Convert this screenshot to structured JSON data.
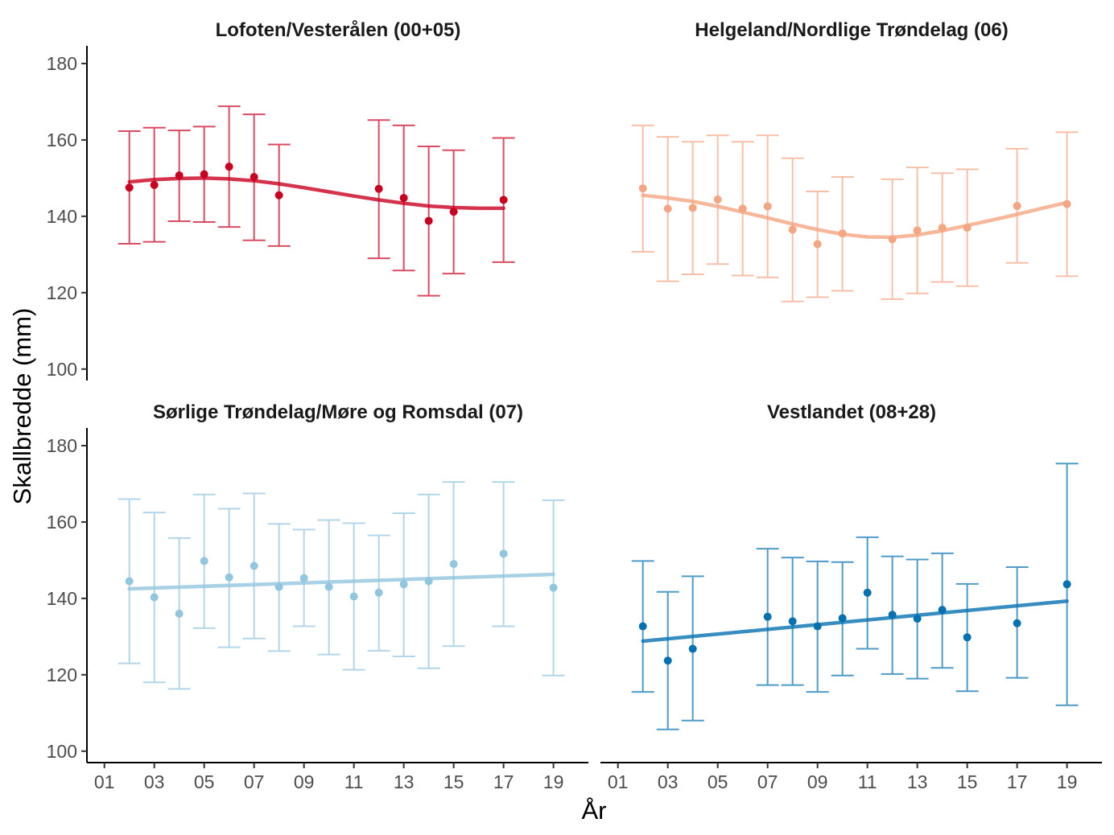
{
  "chart_data": {
    "type": "scatter",
    "xlabel": "År",
    "ylabel": "Skallbredde (mm)",
    "x_ticks": [
      "01",
      "03",
      "05",
      "07",
      "09",
      "11",
      "13",
      "15",
      "17",
      "19"
    ],
    "y_ticks": [
      100,
      120,
      140,
      160,
      180
    ],
    "xlim": [
      0.3,
      20.4
    ],
    "ylim": [
      97,
      184
    ],
    "grid": false,
    "panels": [
      {
        "title": "Lofoten/Vesterålen (00+05)",
        "color": "#ca0020",
        "x": [
          2,
          3,
          4,
          5,
          6,
          7,
          8,
          12,
          13,
          14,
          15,
          17
        ],
        "mean": [
          147.5,
          148.2,
          150.7,
          151.0,
          153.0,
          150.3,
          145.5,
          147.2,
          144.8,
          138.8,
          141.2,
          144.3
        ],
        "lower": [
          132.8,
          133.3,
          138.7,
          138.5,
          137.2,
          133.7,
          132.2,
          129.0,
          125.8,
          119.2,
          125.0,
          128.0
        ],
        "upper": [
          162.3,
          163.2,
          162.5,
          163.5,
          168.8,
          166.7,
          158.8,
          165.2,
          163.8,
          158.3,
          157.3,
          160.5
        ],
        "trend_x": [
          2,
          3,
          4,
          5,
          6,
          7,
          8,
          9,
          10,
          11,
          12,
          13,
          14,
          15,
          16,
          17
        ],
        "trend_y": [
          149.0,
          149.6,
          149.9,
          150.0,
          149.8,
          149.3,
          148.5,
          147.5,
          146.4,
          145.3,
          144.3,
          143.4,
          142.7,
          142.3,
          142.1,
          142.1
        ]
      },
      {
        "title": "Helgeland/Nordlige Trøndelag (06)",
        "color": "#f4a582",
        "x": [
          2,
          3,
          4,
          5,
          6,
          7,
          8,
          9,
          10,
          12,
          13,
          14,
          15,
          17,
          19
        ],
        "mean": [
          147.3,
          142.0,
          142.2,
          144.4,
          142.0,
          142.6,
          136.5,
          132.7,
          135.5,
          134.0,
          136.3,
          137.0,
          137.0,
          142.7,
          143.2
        ],
        "lower": [
          130.7,
          123.0,
          124.8,
          127.5,
          124.5,
          124.0,
          117.7,
          118.8,
          120.5,
          118.3,
          119.8,
          122.8,
          121.7,
          127.8,
          124.3
        ],
        "upper": [
          163.8,
          160.8,
          159.5,
          161.2,
          159.5,
          161.2,
          155.2,
          146.5,
          150.3,
          149.7,
          152.8,
          151.3,
          152.3,
          157.7,
          162.0
        ],
        "trend_x": [
          2,
          3,
          4,
          5,
          6,
          7,
          8,
          9,
          10,
          11,
          12,
          13,
          14,
          15,
          16,
          17,
          18,
          19
        ],
        "trend_y": [
          145.5,
          144.8,
          143.9,
          142.6,
          141.1,
          139.6,
          138.0,
          136.5,
          135.3,
          134.6,
          134.5,
          135.1,
          136.2,
          137.6,
          139.0,
          140.5,
          142.1,
          143.6
        ]
      },
      {
        "title": "Sørlige Trøndelag/Møre og Romsdal (07)",
        "color": "#92c5de",
        "x": [
          2,
          3,
          4,
          5,
          6,
          7,
          8,
          9,
          10,
          11,
          12,
          13,
          14,
          15,
          17,
          19
        ],
        "mean": [
          144.5,
          140.3,
          136.0,
          149.8,
          145.5,
          148.5,
          143.0,
          145.3,
          143.0,
          140.5,
          141.5,
          143.7,
          144.5,
          149.0,
          151.7,
          142.8
        ],
        "lower": [
          123.0,
          118.0,
          116.3,
          132.2,
          127.2,
          129.5,
          126.2,
          132.7,
          125.3,
          121.3,
          126.3,
          124.8,
          121.7,
          127.5,
          132.7,
          119.8
        ],
        "upper": [
          166.0,
          162.5,
          155.8,
          167.2,
          163.5,
          167.5,
          159.5,
          158.0,
          160.5,
          159.7,
          156.5,
          162.3,
          167.2,
          170.5,
          170.5,
          165.7
        ],
        "trend_x": [
          2,
          19
        ],
        "trend_y": [
          142.5,
          146.3
        ]
      },
      {
        "title": "Vestlandet (08+28)",
        "color": "#0571b0",
        "x": [
          2,
          3,
          4,
          7,
          8,
          9,
          10,
          11,
          12,
          13,
          14,
          15,
          17,
          19
        ],
        "mean": [
          132.7,
          123.7,
          126.8,
          135.2,
          134.0,
          132.7,
          134.8,
          141.5,
          135.7,
          134.7,
          137.0,
          129.8,
          133.5,
          143.7
        ],
        "lower": [
          115.5,
          105.7,
          108.0,
          117.3,
          117.3,
          115.5,
          119.8,
          126.8,
          120.2,
          119.0,
          121.8,
          115.7,
          119.2,
          112.0
        ],
        "upper": [
          149.8,
          141.7,
          145.8,
          153.0,
          150.7,
          149.7,
          149.5,
          156.0,
          151.0,
          150.2,
          151.8,
          143.8,
          148.2,
          175.3
        ],
        "trend_x": [
          2,
          19
        ],
        "trend_y": [
          128.8,
          139.3
        ]
      }
    ]
  }
}
